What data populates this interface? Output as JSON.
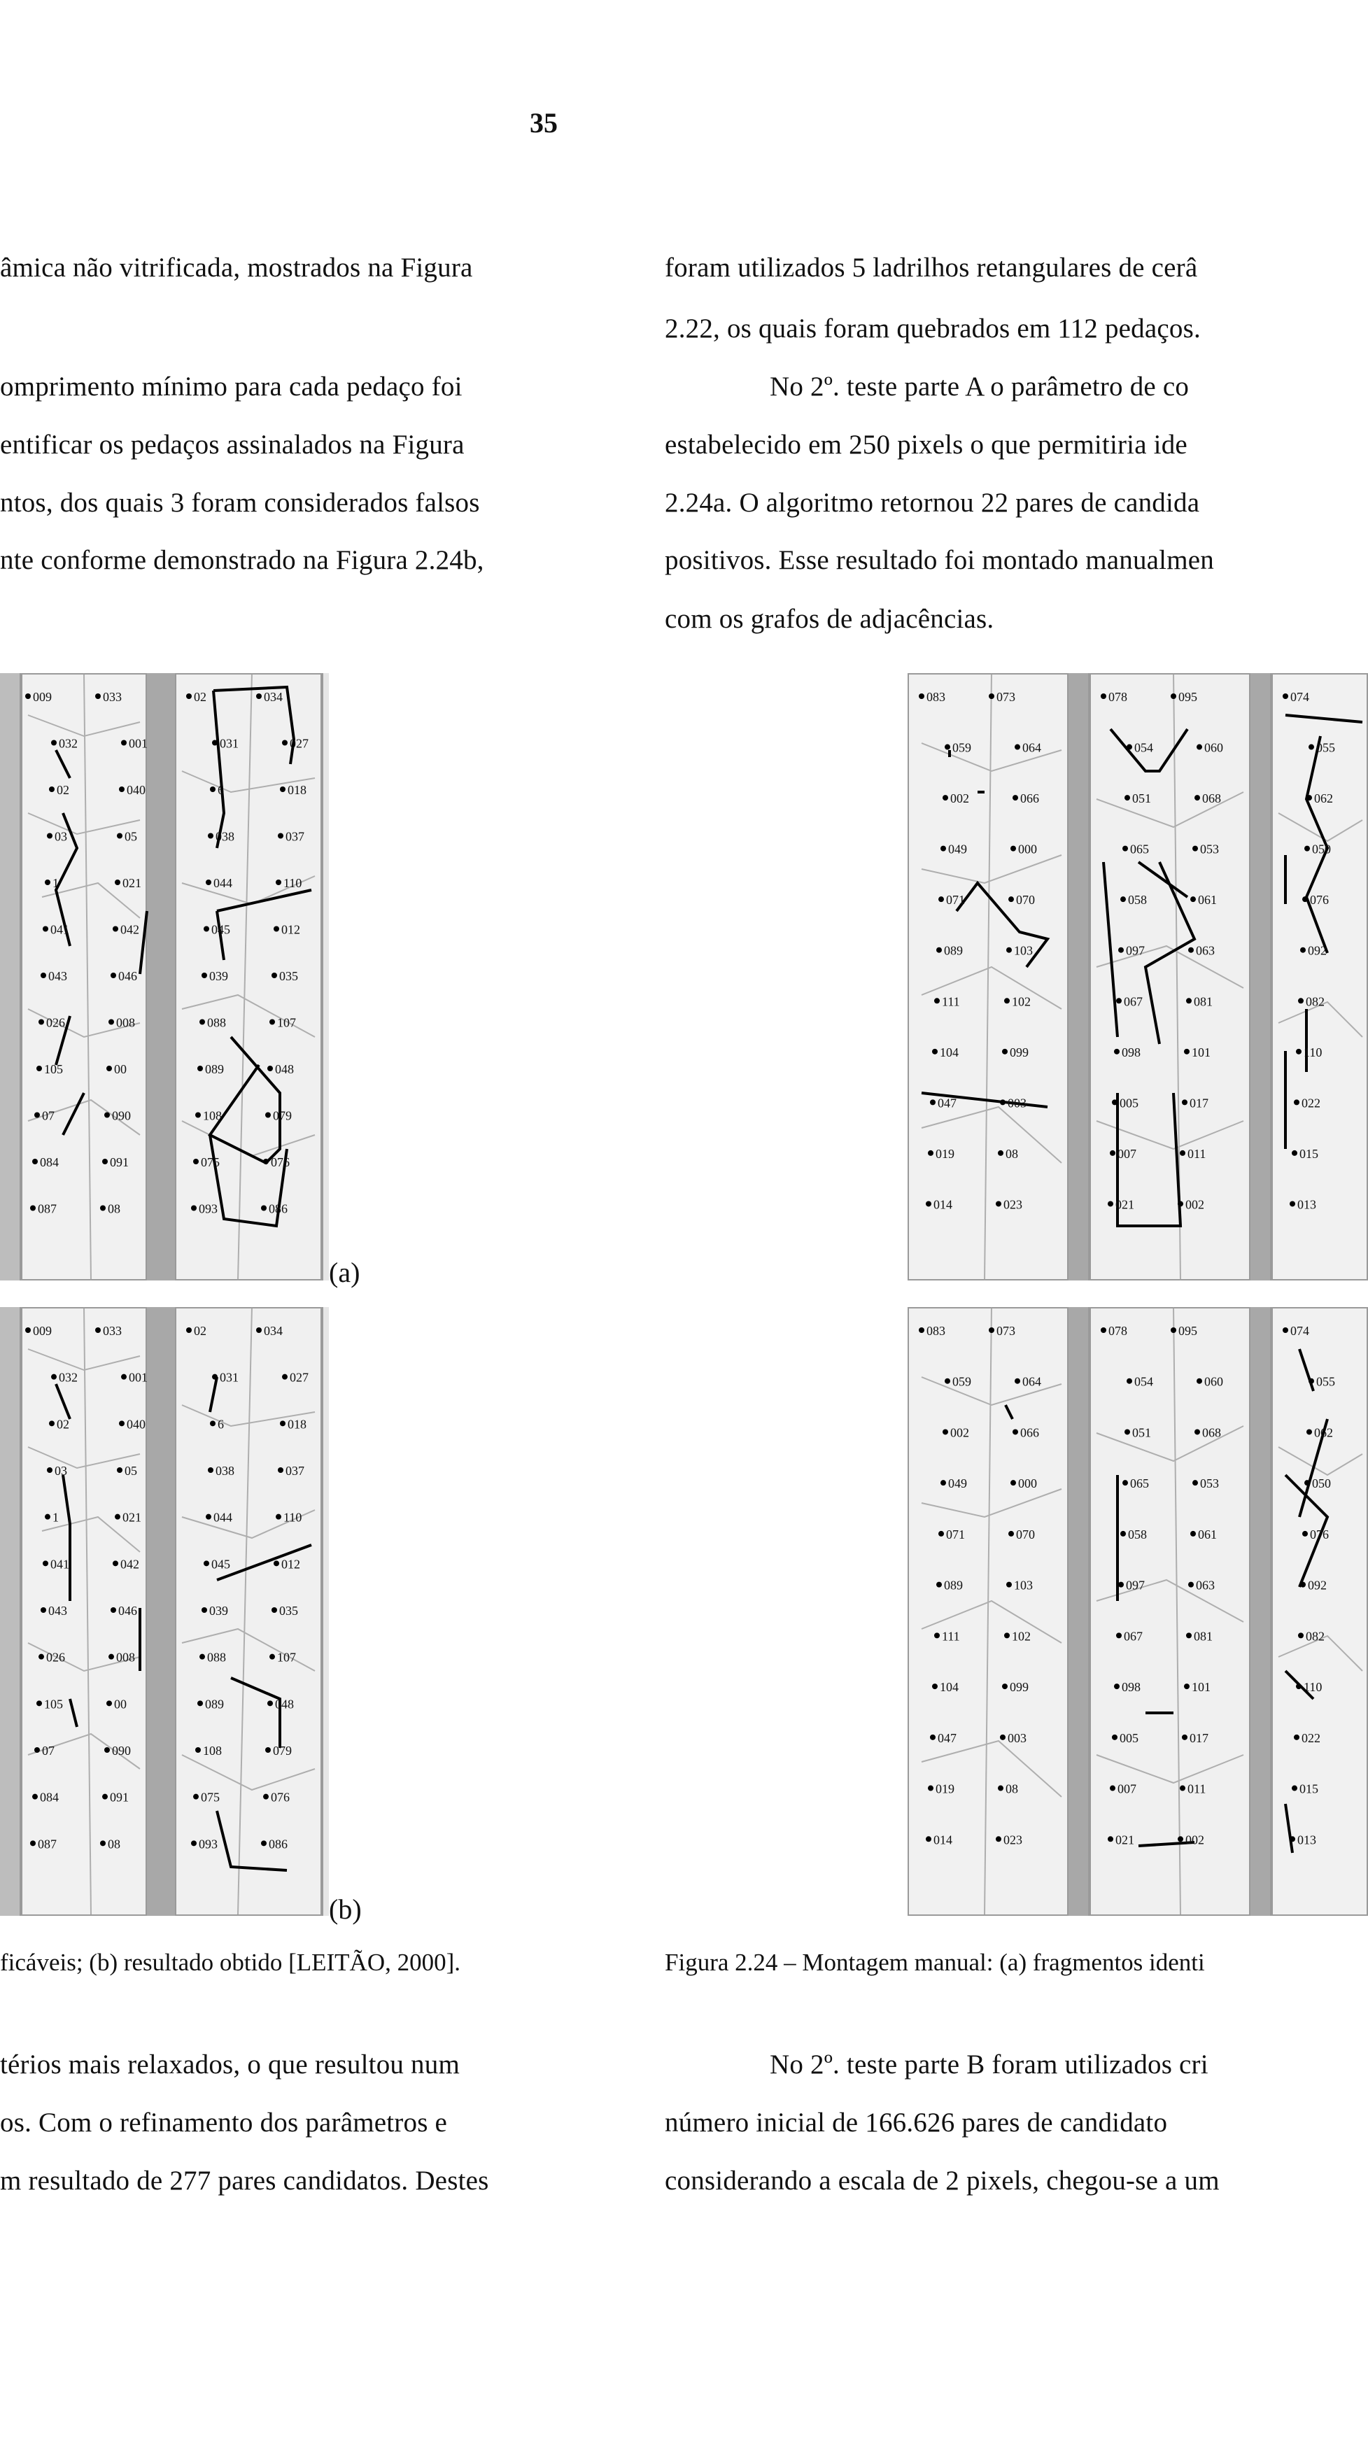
{
  "page_number": "35",
  "left_column": {
    "top_lines": [
      "âmica não vitrificada, mostrados na Figura",
      "",
      "omprimento mínimo para cada pedaço foi",
      "entificar os pedaços assinalados na Figura",
      "ntos, dos quais 3 foram considerados falsos",
      "nte conforme demonstrado na Figura 2.24b,"
    ],
    "panel_a_label": "(a)",
    "panel_b_label": "(b)",
    "caption": "ficáveis; (b) resultado obtido [LEITÃO, 2000].",
    "bottom_lines": [
      "térios mais relaxados, o que resultou num",
      "os. Com o refinamento dos parâmetros e",
      "m resultado de 277 pares candidatos. Destes"
    ]
  },
  "right_column": {
    "top_lines": [
      "foram utilizados 5 ladrilhos retangulares de cerâ",
      "2.22, os quais foram quebrados em 112 pedaços.",
      "No 2º. teste parte A o parâmetro de co",
      "estabelecido em 250 pixels o que permitiria ide",
      "2.24a. O algoritmo retornou 22 pares de candida",
      "positivos. Esse resultado foi montado manualmen",
      "com os grafos de adjacências."
    ],
    "caption": "Figura 2.24 – Montagem manual: (a) fragmentos identi",
    "bottom_lines": [
      "No 2º. teste parte B foram utilizados cri",
      "número inicial de 166.626 pares de candidato",
      "considerando a escala de 2 pixels, chegou-se a um"
    ]
  },
  "figure_labels": {
    "left": [
      "009",
      "033",
      "02",
      "034",
      "032",
      "001",
      "031",
      "027",
      "02",
      "040",
      "6",
      "018",
      "03",
      "05",
      "038",
      "037",
      "1",
      "021",
      "044",
      "110",
      "041",
      "042",
      "045",
      "012",
      "043",
      "046",
      "039",
      "035",
      "026",
      "008",
      "088",
      "107",
      "105",
      "00",
      "089",
      "048",
      "07",
      "090",
      "108",
      "079",
      "084",
      "091",
      "075",
      "076",
      "087",
      "08",
      "093",
      "086"
    ],
    "right": [
      "083",
      "073",
      "078",
      "095",
      "074",
      "059",
      "064",
      "054",
      "060",
      "055",
      "002",
      "066",
      "051",
      "068",
      "062",
      "049",
      "000",
      "065",
      "053",
      "050",
      "071",
      "070",
      "058",
      "061",
      "076",
      "089",
      "103",
      "097",
      "063",
      "092",
      "111",
      "102",
      "067",
      "081",
      "082",
      "104",
      "099",
      "098",
      "101",
      "110",
      "047",
      "003",
      "005",
      "017",
      "022",
      "019",
      "08",
      "007",
      "011",
      "015",
      "014",
      "023",
      "021",
      "002",
      "013"
    ]
  }
}
